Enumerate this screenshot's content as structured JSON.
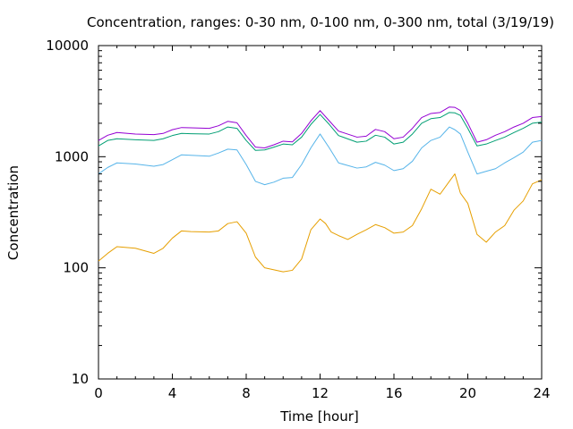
{
  "chart_data": {
    "type": "line",
    "title": "Concentration, ranges: 0-30 nm, 0-100 nm, 0-300 nm, total (3/19/19)",
    "xlabel": "Time [hour]",
    "ylabel": "Concentration",
    "xlim": [
      0,
      24
    ],
    "ylim": [
      10,
      10000
    ],
    "yscale": "log",
    "grid": false,
    "legend": "none",
    "xticks": [
      0,
      4,
      8,
      12,
      16,
      20,
      24
    ],
    "xtick_labels": [
      "0",
      "4",
      "8",
      "12",
      "16",
      "20",
      "24"
    ],
    "yticks": [
      10,
      100,
      1000,
      10000
    ],
    "ytick_labels": [
      "10",
      "100",
      "1000",
      "10000"
    ],
    "series": [
      {
        "color": "#e69f00",
        "points": [
          [
            0,
            115
          ],
          [
            0.5,
            135
          ],
          [
            1,
            155
          ],
          [
            2,
            150
          ],
          [
            3,
            135
          ],
          [
            3.5,
            150
          ],
          [
            4,
            185
          ],
          [
            4.5,
            215
          ],
          [
            5,
            212
          ],
          [
            6,
            210
          ],
          [
            6.5,
            215
          ],
          [
            7,
            250
          ],
          [
            7.5,
            260
          ],
          [
            8,
            205
          ],
          [
            8.5,
            125
          ],
          [
            9,
            100
          ],
          [
            10,
            92
          ],
          [
            10.5,
            95
          ],
          [
            11,
            120
          ],
          [
            11.5,
            220
          ],
          [
            12,
            275
          ],
          [
            12.3,
            250
          ],
          [
            12.6,
            210
          ],
          [
            13,
            195
          ],
          [
            13.5,
            180
          ],
          [
            14,
            200
          ],
          [
            14.5,
            220
          ],
          [
            15,
            245
          ],
          [
            15.5,
            230
          ],
          [
            16,
            205
          ],
          [
            16.5,
            210
          ],
          [
            17,
            240
          ],
          [
            17.5,
            340
          ],
          [
            18,
            510
          ],
          [
            18.5,
            460
          ],
          [
            19,
            600
          ],
          [
            19.3,
            700
          ],
          [
            19.6,
            470
          ],
          [
            20,
            380
          ],
          [
            20.5,
            200
          ],
          [
            21,
            170
          ],
          [
            21.5,
            210
          ],
          [
            22,
            240
          ],
          [
            22.5,
            330
          ],
          [
            23,
            400
          ],
          [
            23.5,
            570
          ],
          [
            24,
            620
          ]
        ]
      },
      {
        "color": "#56b4e9",
        "points": [
          [
            0,
            700
          ],
          [
            0.5,
            800
          ],
          [
            1,
            880
          ],
          [
            2,
            860
          ],
          [
            3,
            820
          ],
          [
            3.5,
            850
          ],
          [
            4,
            940
          ],
          [
            4.5,
            1040
          ],
          [
            5,
            1030
          ],
          [
            6,
            1010
          ],
          [
            6.5,
            1080
          ],
          [
            7,
            1170
          ],
          [
            7.5,
            1150
          ],
          [
            8,
            850
          ],
          [
            8.5,
            600
          ],
          [
            9,
            560
          ],
          [
            9.5,
            590
          ],
          [
            10,
            640
          ],
          [
            10.5,
            650
          ],
          [
            11,
            850
          ],
          [
            11.5,
            1200
          ],
          [
            12,
            1600
          ],
          [
            12.5,
            1200
          ],
          [
            13,
            880
          ],
          [
            14,
            790
          ],
          [
            14.5,
            810
          ],
          [
            15,
            890
          ],
          [
            15.5,
            840
          ],
          [
            16,
            750
          ],
          [
            16.5,
            780
          ],
          [
            17,
            910
          ],
          [
            17.5,
            1200
          ],
          [
            18,
            1400
          ],
          [
            18.5,
            1500
          ],
          [
            19,
            1850
          ],
          [
            19.3,
            1750
          ],
          [
            19.6,
            1600
          ],
          [
            20,
            1100
          ],
          [
            20.5,
            700
          ],
          [
            21,
            740
          ],
          [
            21.5,
            780
          ],
          [
            22,
            880
          ],
          [
            22.5,
            980
          ],
          [
            23,
            1100
          ],
          [
            23.5,
            1350
          ],
          [
            24,
            1400
          ]
        ]
      },
      {
        "color": "#009e73",
        "points": [
          [
            0,
            1250
          ],
          [
            0.5,
            1400
          ],
          [
            1,
            1450
          ],
          [
            2,
            1420
          ],
          [
            3,
            1400
          ],
          [
            3.5,
            1450
          ],
          [
            4,
            1550
          ],
          [
            4.5,
            1620
          ],
          [
            5,
            1610
          ],
          [
            6,
            1600
          ],
          [
            6.5,
            1680
          ],
          [
            7,
            1850
          ],
          [
            7.5,
            1800
          ],
          [
            8,
            1400
          ],
          [
            8.5,
            1140
          ],
          [
            9,
            1150
          ],
          [
            9.5,
            1220
          ],
          [
            10,
            1300
          ],
          [
            10.5,
            1280
          ],
          [
            11,
            1500
          ],
          [
            11.5,
            1950
          ],
          [
            12,
            2400
          ],
          [
            12.5,
            1950
          ],
          [
            13,
            1550
          ],
          [
            14,
            1350
          ],
          [
            14.5,
            1380
          ],
          [
            15,
            1560
          ],
          [
            15.5,
            1500
          ],
          [
            16,
            1300
          ],
          [
            16.5,
            1350
          ],
          [
            17,
            1600
          ],
          [
            17.5,
            2000
          ],
          [
            18,
            2200
          ],
          [
            18.5,
            2250
          ],
          [
            19,
            2500
          ],
          [
            19.3,
            2480
          ],
          [
            19.6,
            2350
          ],
          [
            20,
            1800
          ],
          [
            20.5,
            1250
          ],
          [
            21,
            1300
          ],
          [
            21.5,
            1400
          ],
          [
            22,
            1500
          ],
          [
            22.5,
            1650
          ],
          [
            23,
            1800
          ],
          [
            23.5,
            2000
          ],
          [
            24,
            2050
          ]
        ]
      },
      {
        "color": "#9400d3",
        "points": [
          [
            0,
            1400
          ],
          [
            0.5,
            1560
          ],
          [
            1,
            1650
          ],
          [
            2,
            1600
          ],
          [
            3,
            1580
          ],
          [
            3.5,
            1620
          ],
          [
            4,
            1750
          ],
          [
            4.5,
            1830
          ],
          [
            5,
            1820
          ],
          [
            6,
            1800
          ],
          [
            6.5,
            1900
          ],
          [
            7,
            2080
          ],
          [
            7.5,
            2020
          ],
          [
            8,
            1550
          ],
          [
            8.5,
            1220
          ],
          [
            9,
            1200
          ],
          [
            9.5,
            1280
          ],
          [
            10,
            1380
          ],
          [
            10.5,
            1360
          ],
          [
            11,
            1620
          ],
          [
            11.5,
            2100
          ],
          [
            12,
            2600
          ],
          [
            12.5,
            2100
          ],
          [
            13,
            1700
          ],
          [
            14,
            1500
          ],
          [
            14.5,
            1530
          ],
          [
            15,
            1760
          ],
          [
            15.5,
            1680
          ],
          [
            16,
            1450
          ],
          [
            16.5,
            1500
          ],
          [
            17,
            1800
          ],
          [
            17.5,
            2250
          ],
          [
            18,
            2450
          ],
          [
            18.5,
            2500
          ],
          [
            19,
            2800
          ],
          [
            19.3,
            2780
          ],
          [
            19.6,
            2600
          ],
          [
            20,
            2000
          ],
          [
            20.5,
            1350
          ],
          [
            21,
            1420
          ],
          [
            21.5,
            1560
          ],
          [
            22,
            1680
          ],
          [
            22.5,
            1850
          ],
          [
            23,
            2000
          ],
          [
            23.5,
            2250
          ],
          [
            24,
            2300
          ]
        ]
      }
    ]
  }
}
